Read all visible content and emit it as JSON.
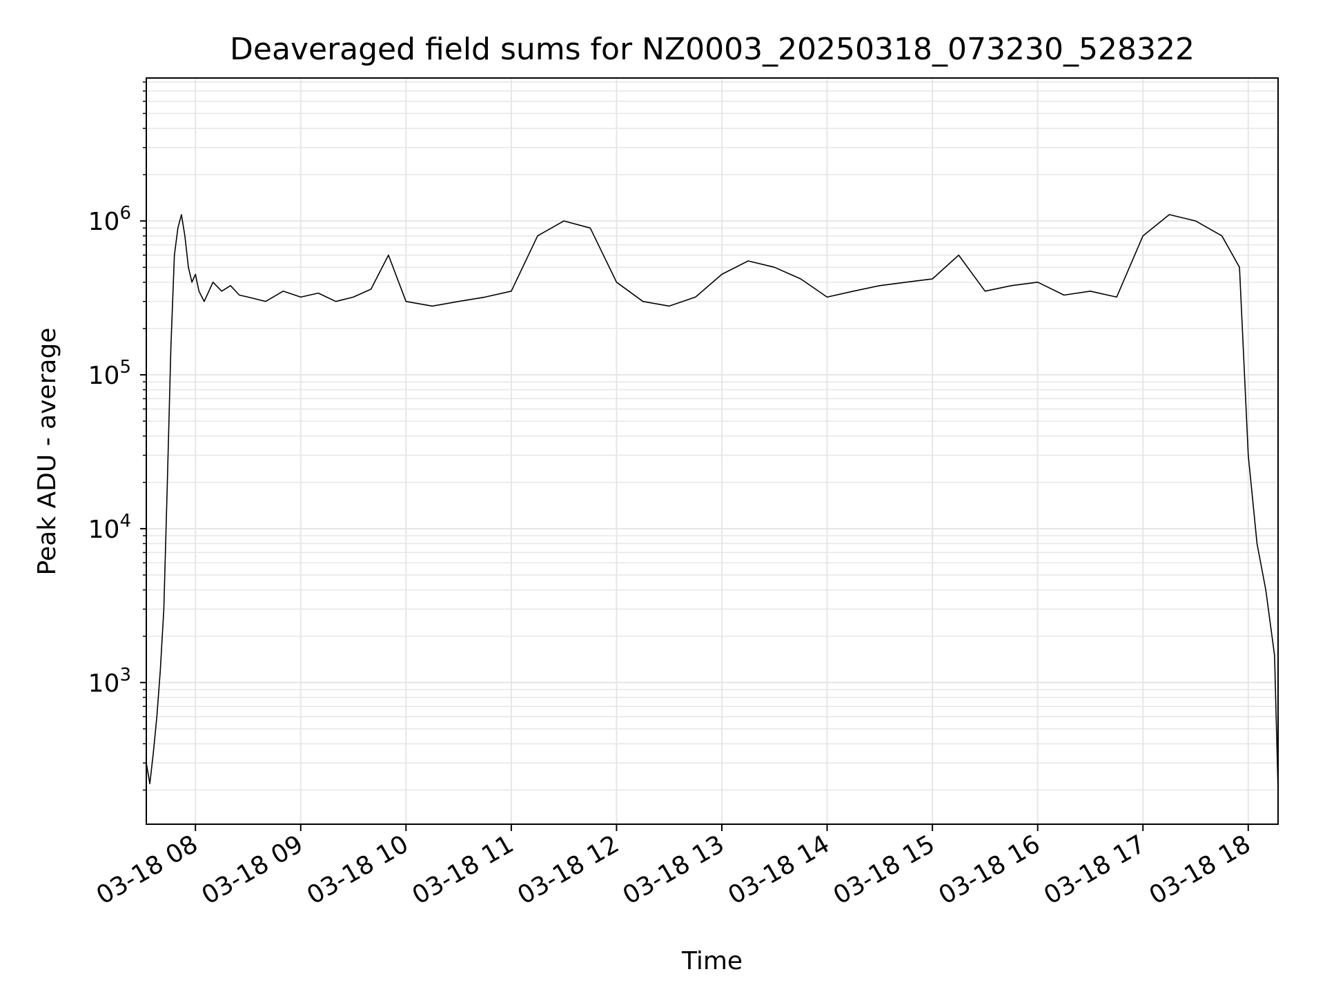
{
  "chart_data": {
    "type": "line",
    "title": "Deaveraged field sums for NZ0003_20250318_073230_528322",
    "xlabel": "Time",
    "ylabel": "Peak ADU - average",
    "yscale": "log",
    "grid": "both-major-and-minor",
    "legend": "none",
    "line_color": "#000000",
    "grid_color": "#e6e6e6",
    "xlim": [
      "03-18 07:32",
      "03-18 18:17"
    ],
    "ylim": [
      120,
      8500000
    ],
    "x_ticks": [
      "03-18 08",
      "03-18 09",
      "03-18 10",
      "03-18 11",
      "03-18 12",
      "03-18 13",
      "03-18 14",
      "03-18 15",
      "03-18 16",
      "03-18 17",
      "03-18 18"
    ],
    "y_ticks": [
      {
        "value": 1000,
        "base": "10",
        "exp": "3"
      },
      {
        "value": 10000,
        "base": "10",
        "exp": "4"
      },
      {
        "value": 100000,
        "base": "10",
        "exp": "5"
      },
      {
        "value": 1000000,
        "base": "10",
        "exp": "6"
      }
    ],
    "series": [
      {
        "x": [
          "03-18 07:32",
          "03-18 07:34",
          "03-18 07:36",
          "03-18 07:38",
          "03-18 07:40",
          "03-18 07:42",
          "03-18 07:44",
          "03-18 07:46",
          "03-18 07:48",
          "03-18 07:50",
          "03-18 07:52",
          "03-18 07:54",
          "03-18 07:56",
          "03-18 07:58",
          "03-18 08:00",
          "03-18 08:02",
          "03-18 08:05",
          "03-18 08:10",
          "03-18 08:15",
          "03-18 08:20",
          "03-18 08:25",
          "03-18 08:30",
          "03-18 08:40",
          "03-18 08:50",
          "03-18 09:00",
          "03-18 09:10",
          "03-18 09:20",
          "03-18 09:30",
          "03-18 09:40",
          "03-18 09:50",
          "03-18 10:00",
          "03-18 10:15",
          "03-18 10:30",
          "03-18 10:45",
          "03-18 11:00",
          "03-18 11:15",
          "03-18 11:30",
          "03-18 11:45",
          "03-18 12:00",
          "03-18 12:15",
          "03-18 12:30",
          "03-18 12:45",
          "03-18 13:00",
          "03-18 13:15",
          "03-18 13:30",
          "03-18 13:45",
          "03-18 14:00",
          "03-18 14:15",
          "03-18 14:30",
          "03-18 14:45",
          "03-18 15:00",
          "03-18 15:15",
          "03-18 15:30",
          "03-18 15:45",
          "03-18 16:00",
          "03-18 16:15",
          "03-18 16:30",
          "03-18 16:45",
          "03-18 17:00",
          "03-18 17:15",
          "03-18 17:30",
          "03-18 17:45",
          "03-18 17:55",
          "03-18 18:00",
          "03-18 18:05",
          "03-18 18:10",
          "03-18 18:15",
          "03-18 18:17"
        ],
        "y": [
          300,
          220,
          350,
          600,
          1200,
          3000,
          20000,
          150000,
          600000,
          900000,
          1100000,
          800000,
          500000,
          400000,
          450000,
          350000,
          300000,
          400000,
          350000,
          380000,
          330000,
          320000,
          300000,
          350000,
          320000,
          340000,
          300000,
          320000,
          360000,
          600000,
          300000,
          280000,
          300000,
          320000,
          350000,
          800000,
          1000000,
          900000,
          400000,
          300000,
          280000,
          320000,
          450000,
          550000,
          500000,
          420000,
          320000,
          350000,
          380000,
          400000,
          420000,
          600000,
          350000,
          380000,
          400000,
          330000,
          350000,
          320000,
          800000,
          1100000,
          1000000,
          800000,
          500000,
          30000,
          8000,
          4000,
          1500,
          200
        ]
      }
    ]
  }
}
